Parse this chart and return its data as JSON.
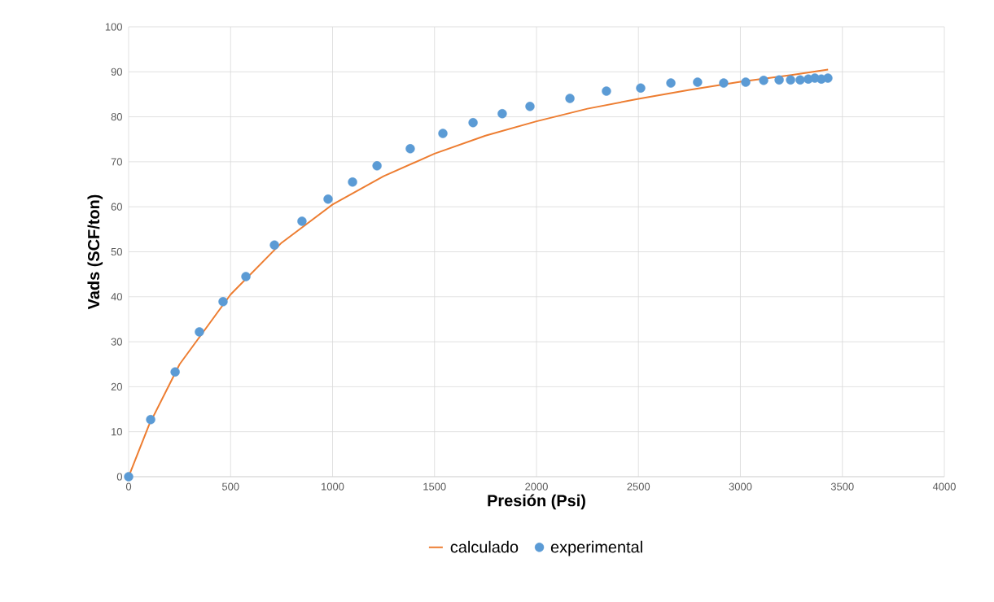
{
  "chart_data": {
    "type": "scatter",
    "xlabel": "Presión (Psi)",
    "ylabel": "Vads (SCF/ton)",
    "xlim": [
      0,
      4000
    ],
    "ylim": [
      0,
      100
    ],
    "xticks": [
      0,
      500,
      1000,
      1500,
      2000,
      2500,
      3000,
      3500,
      4000
    ],
    "yticks": [
      0,
      10,
      20,
      30,
      40,
      50,
      60,
      70,
      80,
      90,
      100
    ],
    "grid": true,
    "legend": "bottom",
    "series": [
      {
        "name": "calculado",
        "type": "line",
        "color": "#ed7d31",
        "marker": "none",
        "x": [
          0,
          100,
          250,
          500,
          750,
          1000,
          1250,
          1500,
          1750,
          2000,
          2250,
          2500,
          2750,
          3000,
          3250,
          3430
        ],
        "values": [
          0,
          11.5,
          25,
          40.5,
          52,
          60.5,
          66.8,
          71.8,
          75.8,
          79,
          81.8,
          84,
          86,
          87.8,
          89.3,
          90.5
        ]
      },
      {
        "name": "experimental",
        "color": "#5b9bd5",
        "marker": "circle",
        "x": [
          0,
          108,
          228,
          347,
          463,
          575,
          715,
          850,
          978,
          1098,
          1218,
          1381,
          1541,
          1689,
          1832,
          1968,
          2164,
          2343,
          2511,
          2659,
          2790,
          2918,
          3026,
          3114,
          3190,
          3246,
          3293,
          3333,
          3365,
          3397,
          3429
        ],
        "values": [
          0,
          12.7,
          23.3,
          32.2,
          38.9,
          44.5,
          51.5,
          56.8,
          61.7,
          65.5,
          69.1,
          72.9,
          76.3,
          78.7,
          80.7,
          82.3,
          84.1,
          85.7,
          86.4,
          87.5,
          87.7,
          87.5,
          87.7,
          88.1,
          88.2,
          88.2,
          88.2,
          88.4,
          88.6,
          88.4,
          88.6
        ]
      }
    ]
  }
}
